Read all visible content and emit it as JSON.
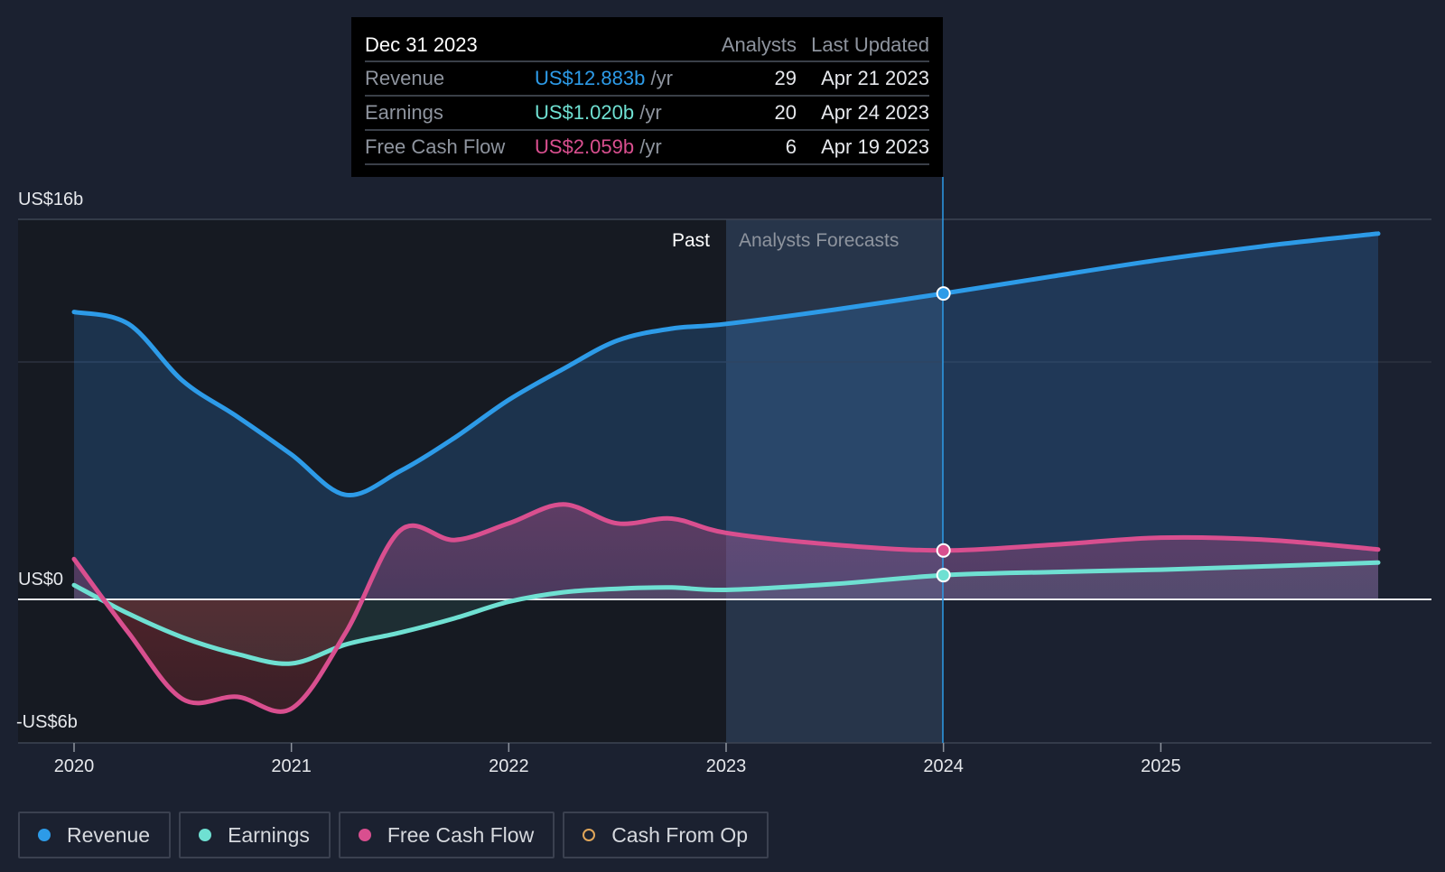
{
  "tooltip": {
    "date": "Dec 31 2023",
    "col_analysts": "Analysts",
    "col_updated": "Last Updated",
    "rows": [
      {
        "label": "Revenue",
        "value": "US$12.883b",
        "unit": "/yr",
        "analysts": "29",
        "updated": "Apr 21 2023",
        "color": "#2d9be8"
      },
      {
        "label": "Earnings",
        "value": "US$1.020b",
        "unit": "/yr",
        "analysts": "20",
        "updated": "Apr 24 2023",
        "color": "#6fe0d2"
      },
      {
        "label": "Free Cash Flow",
        "value": "US$2.059b",
        "unit": "/yr",
        "analysts": "6",
        "updated": "Apr 19 2023",
        "color": "#d94f8f"
      }
    ]
  },
  "chart_data": {
    "type": "area",
    "y_tick_labels": [
      "US$16b",
      "US$0",
      "-US$6b"
    ],
    "x_tick_labels": [
      "2020",
      "2021",
      "2022",
      "2023",
      "2024",
      "2025"
    ],
    "past_label": "Past",
    "forecast_label": "Analysts Forecasts",
    "xlim": [
      2020,
      2026
    ],
    "ylim": [
      -6,
      16
    ],
    "series": [
      {
        "name": "Revenue",
        "color": "#2d9be8",
        "x": [
          2020.0,
          2020.25,
          2020.5,
          2020.75,
          2021.0,
          2021.25,
          2021.5,
          2021.75,
          2022.0,
          2022.25,
          2022.5,
          2022.75,
          2023.0,
          2023.5,
          2024.0,
          2024.5,
          2025.0,
          2025.5,
          2026.0
        ],
        "y": [
          12.1,
          11.6,
          9.2,
          7.7,
          6.1,
          4.4,
          5.4,
          6.8,
          8.4,
          9.7,
          10.9,
          11.4,
          11.6,
          12.2,
          12.88,
          13.6,
          14.3,
          14.9,
          15.4
        ]
      },
      {
        "name": "Earnings",
        "color": "#6fe0d2",
        "x": [
          2020.0,
          2020.25,
          2020.5,
          2020.75,
          2021.0,
          2021.25,
          2021.5,
          2021.75,
          2022.0,
          2022.25,
          2022.5,
          2022.75,
          2023.0,
          2023.5,
          2024.0,
          2024.5,
          2025.0,
          2025.5,
          2026.0
        ],
        "y": [
          0.6,
          -0.6,
          -1.6,
          -2.3,
          -2.7,
          -1.9,
          -1.4,
          -0.8,
          -0.1,
          0.3,
          0.45,
          0.5,
          0.4,
          0.65,
          1.02,
          1.15,
          1.25,
          1.4,
          1.55
        ]
      },
      {
        "name": "Free Cash Flow",
        "color": "#d94f8f",
        "x": [
          2020.0,
          2020.25,
          2020.5,
          2020.75,
          2021.0,
          2021.25,
          2021.5,
          2021.75,
          2022.0,
          2022.25,
          2022.5,
          2022.75,
          2023.0,
          2023.5,
          2024.0,
          2024.5,
          2025.0,
          2025.5,
          2026.0
        ],
        "y": [
          1.7,
          -1.4,
          -4.2,
          -4.1,
          -4.6,
          -1.4,
          2.9,
          2.5,
          3.2,
          4.0,
          3.2,
          3.4,
          2.8,
          2.3,
          2.06,
          2.3,
          2.6,
          2.5,
          2.1
        ]
      },
      {
        "name": "Cash From Op",
        "color": "#e0a65a",
        "x": [],
        "y": []
      }
    ]
  },
  "legend": [
    {
      "label": "Revenue",
      "color": "#2d9be8",
      "filled": true
    },
    {
      "label": "Earnings",
      "color": "#6fe0d2",
      "filled": true
    },
    {
      "label": "Free Cash Flow",
      "color": "#d94f8f",
      "filled": true
    },
    {
      "label": "Cash From Op",
      "color": "#e0a65a",
      "filled": false
    }
  ]
}
